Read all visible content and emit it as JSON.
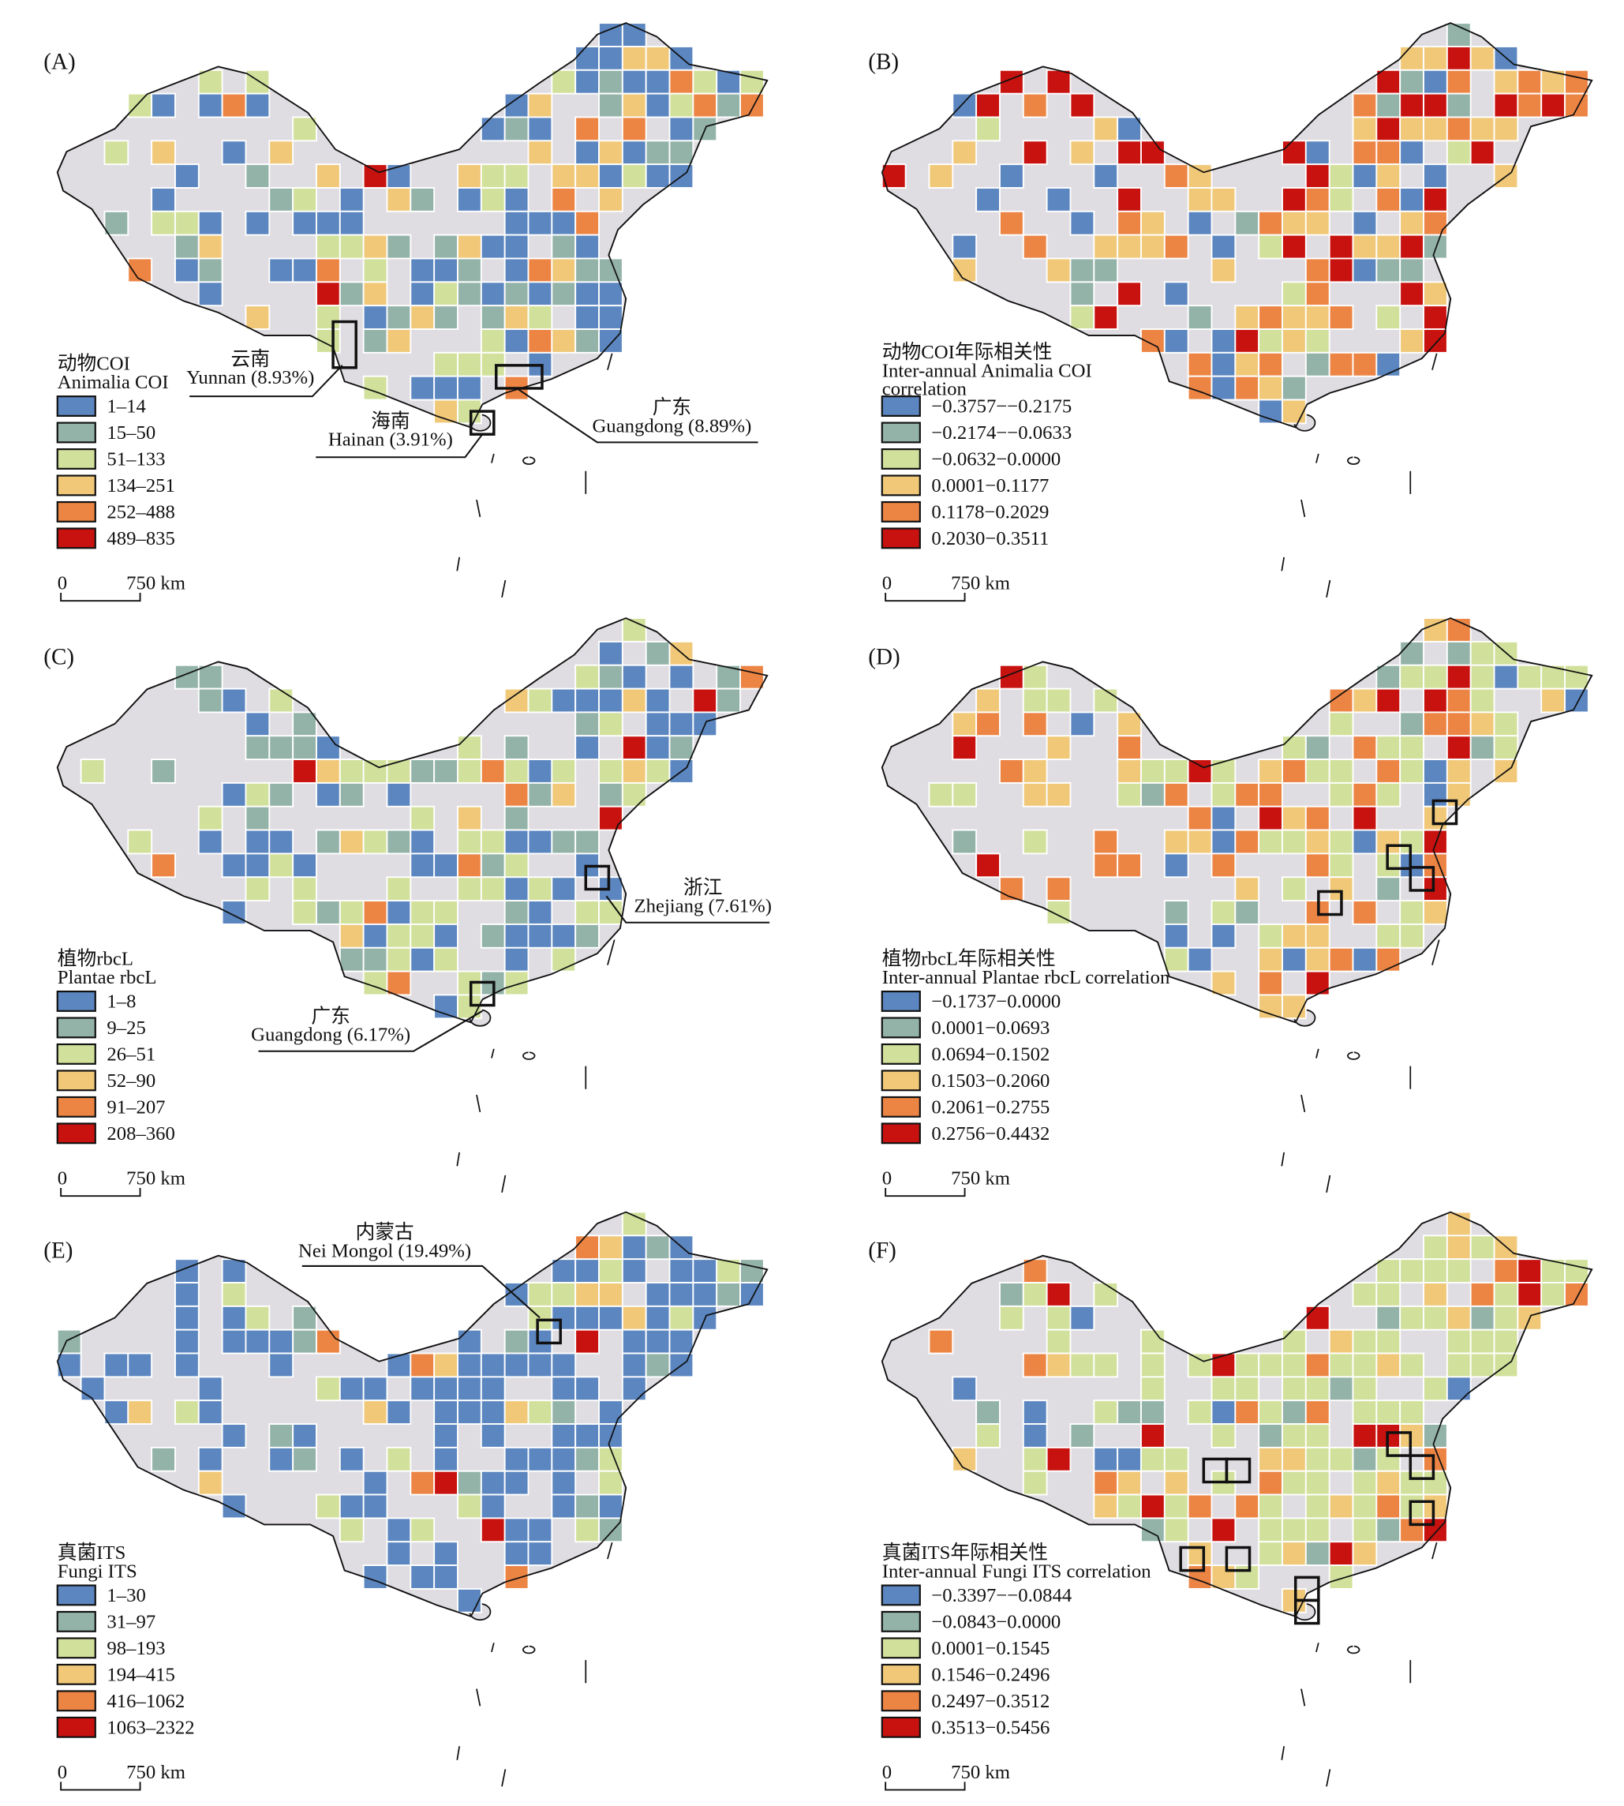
{
  "colors": [
    "#5b86c0",
    "#93b3a8",
    "#d1e09a",
    "#f0c878",
    "#ec8444",
    "#c8120f"
  ],
  "land_color": "#e0dde2",
  "scale_bar": {
    "zero": "0",
    "distance": "750 km"
  },
  "panels": [
    {
      "label": "(A)",
      "title": [
        "动物COI",
        "Animalia COI"
      ],
      "legend": [
        "1–14",
        "15–50",
        "51–133",
        "134–251",
        "252–488",
        "489–835"
      ],
      "callouts": [
        {
          "cn": "云南",
          "en": "Yunnan (8.93%)"
        },
        {
          "cn": "海南",
          "en": "Hainan (3.91%)"
        },
        {
          "cn": "广东",
          "en": "Guangdong (8.89%)"
        }
      ]
    },
    {
      "label": "(B)",
      "title": [
        "动物COI年际相关性",
        "Inter-annual Animalia COI",
        "correlation"
      ],
      "legend": [
        "−0.3757−−0.2175",
        "−0.2174−−0.0633",
        "−0.0632−0.0000",
        "0.0001−0.1177",
        "0.1178−0.2029",
        "0.2030−0.3511"
      ],
      "callouts": []
    },
    {
      "label": "(C)",
      "title": [
        "植物rbcL",
        "Plantae rbcL"
      ],
      "legend": [
        "1–8",
        "9–25",
        "26–51",
        "52–90",
        "91–207",
        "208–360"
      ],
      "callouts": [
        {
          "cn": "浙江",
          "en": "Zhejiang (7.61%)"
        },
        {
          "cn": "广东",
          "en": "Guangdong (6.17%)"
        }
      ]
    },
    {
      "label": "(D)",
      "title": [
        "植物rbcL年际相关性",
        "Inter-annual Plantae rbcL correlation"
      ],
      "legend": [
        "−0.1737−0.0000",
        "0.0001−0.0693",
        "0.0694−0.1502",
        "0.1503−0.2060",
        "0.2061−0.2755",
        "0.2756−0.4432"
      ],
      "callouts": []
    },
    {
      "label": "(E)",
      "title": [
        "真菌ITS",
        "Fungi ITS"
      ],
      "legend": [
        "1–30",
        "31–97",
        "98–193",
        "194–415",
        "416–1062",
        "1063–2322"
      ],
      "callouts": [
        {
          "cn": "内蒙古",
          "en": "Nei Mongol (19.49%)"
        }
      ]
    },
    {
      "label": "(F)",
      "title": [
        "真菌ITS年际相关性",
        "Inter-annual Fungi ITS correlation"
      ],
      "legend": [
        "−0.3397−−0.0844",
        "−0.0843−0.0000",
        "0.0001−0.1545",
        "0.1546−0.2496",
        "0.2497−0.3512",
        "0.3513−0.5456"
      ],
      "callouts": []
    }
  ]
}
